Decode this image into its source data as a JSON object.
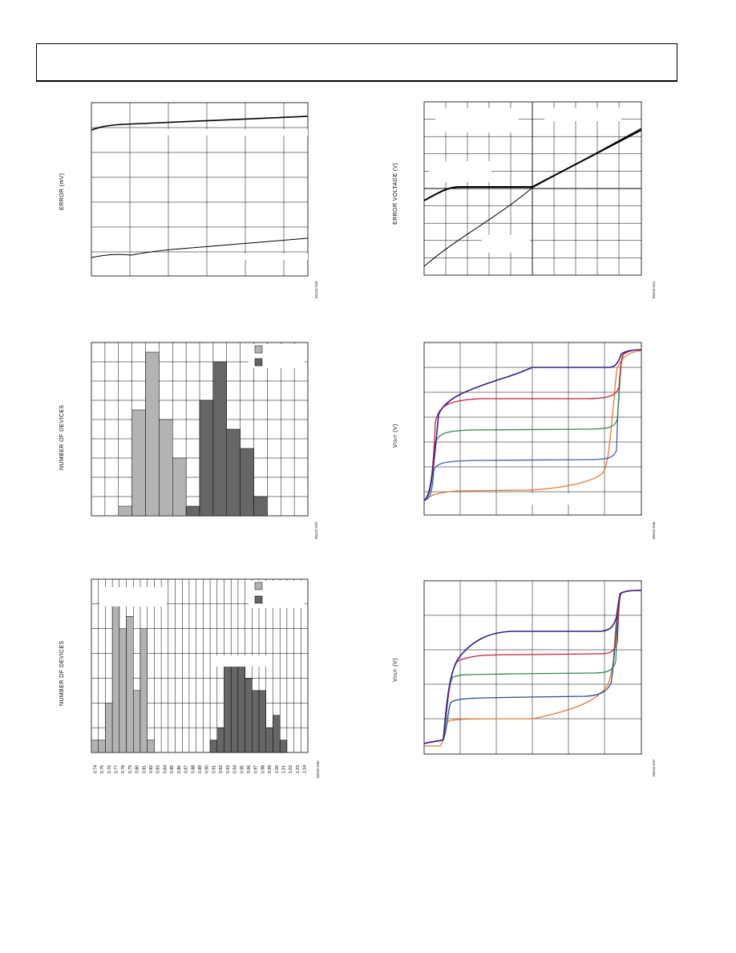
{
  "page": {
    "header": ""
  },
  "figures": {
    "fig1": {
      "ylabel": "ERROR (mV)",
      "code": "06342-028"
    },
    "fig2": {
      "ylabel": "ERROR VOLTAGE (V)",
      "code": "06342-031"
    },
    "fig3": {
      "ylabel": "NUMBER OF DEVICES",
      "code": "06342-029"
    },
    "fig4": {
      "ylabel_main": "V",
      "ylabel_sub": "OUT",
      "ylabel_unit": " (V)",
      "code": "06342-046"
    },
    "fig5": {
      "ylabel": "NUMBER OF DEVICES",
      "code": "06342-030"
    },
    "fig6": {
      "ylabel_main": "V",
      "ylabel_sub": "OUT",
      "ylabel_unit": " (V)",
      "code": "06342-047"
    }
  },
  "chart_data": [
    {
      "id": "fig3",
      "type": "bar",
      "ylabel": "NUMBER OF DEVICES",
      "series_colors": [
        "#b3b3b3",
        "#666666"
      ],
      "series": [
        {
          "bins": [
            2,
            3,
            4,
            5,
            6,
            7,
            8
          ],
          "values": [
            1,
            11,
            17,
            10,
            6,
            0,
            0
          ]
        },
        {
          "bins": [
            7,
            8,
            9,
            10,
            11,
            12
          ],
          "values": [
            1,
            12,
            16,
            9,
            7,
            2
          ]
        }
      ]
    },
    {
      "id": "fig5",
      "type": "bar",
      "ylabel": "NUMBER OF DEVICES",
      "x_ticks": [
        "0.74",
        "0.75",
        "0.76",
        "0.77",
        "0.78",
        "0.79",
        "0.80",
        "0.81",
        "0.82",
        "0.83",
        "0.84",
        "0.85",
        "0.86",
        "0.87",
        "0.88",
        "0.89",
        "0.90",
        "0.91",
        "0.92",
        "0.93",
        "0.94",
        "0.95",
        "0.96",
        "0.97",
        "0.98",
        "0.99",
        "1.00",
        "1.01",
        "1.02",
        "1.03",
        "1.04"
      ],
      "series_colors": [
        "#b3b3b3",
        "#666666"
      ],
      "series": [
        {
          "values": [
            1,
            1,
            4,
            13,
            10,
            11,
            5,
            10,
            1,
            0,
            0,
            0,
            0,
            0,
            0,
            0,
            0,
            0,
            0,
            0,
            0,
            0,
            0,
            0,
            0,
            0,
            0,
            0,
            0,
            0,
            0
          ]
        },
        {
          "values": [
            0,
            0,
            0,
            0,
            0,
            0,
            0,
            0,
            0,
            0,
            0,
            0,
            0,
            0,
            0,
            0,
            0,
            1,
            2,
            7,
            7,
            7,
            6,
            5,
            5,
            2,
            3,
            1,
            0,
            0,
            0
          ]
        }
      ]
    }
  ]
}
